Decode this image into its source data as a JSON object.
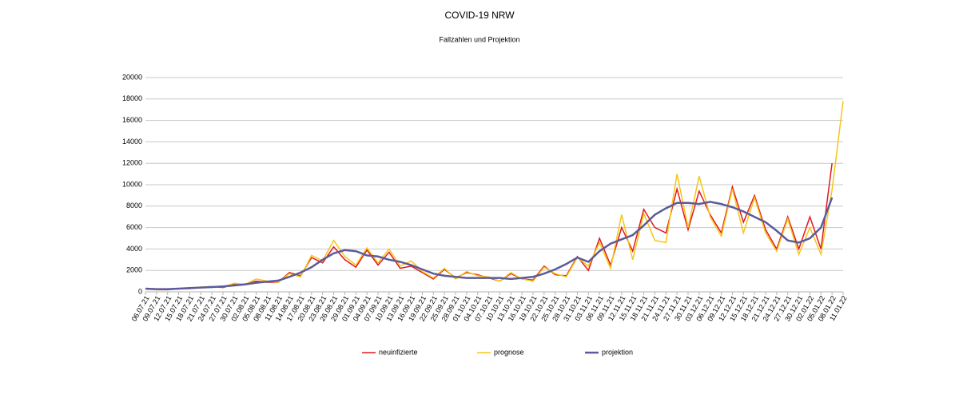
{
  "chart_data": {
    "type": "line",
    "title": "COVID-19 NRW",
    "subtitle": "Fallzahlen und Projektion",
    "categories": [
      "06.07.21",
      "09.07.21",
      "12.07.21",
      "15.07.21",
      "18.07.21",
      "21.07.21",
      "24.07.21",
      "27.07.21",
      "30.07.21",
      "02.08.21",
      "05.08.21",
      "08.08.21",
      "11.08.21",
      "14.08.21",
      "17.08.21",
      "20.08.21",
      "23.08.21",
      "26.08.21",
      "29.08.21",
      "01.09.21",
      "04.09.21",
      "07.09.21",
      "10.09.21",
      "13.09.21",
      "16.09.21",
      "19.09.21",
      "22.09.21",
      "25.09.21",
      "28.09.21",
      "01.10.21",
      "04.10.21",
      "07.10.21",
      "10.10.21",
      "13.10.21",
      "16.10.21",
      "19.10.21",
      "22.10.21",
      "25.10.21",
      "28.10.21",
      "31.10.21",
      "03.11.21",
      "06.11.21",
      "09.11.21",
      "12.11.21",
      "15.11.21",
      "18.11.21",
      "21.11.21",
      "24.11.21",
      "27.11.21",
      "30.11.21",
      "03.12.21",
      "06.12.21",
      "09.12.21",
      "12.12.21",
      "15.12.21",
      "18.12.21",
      "21.12.21",
      "24.12.21",
      "27.12.21",
      "30.12.21",
      "02.01.22",
      "05.01.22",
      "08.01.22",
      "11.01.22"
    ],
    "series": [
      {
        "name": "neuinfizierte",
        "color": "#e31a1c",
        "values": [
          300,
          200,
          200,
          300,
          300,
          400,
          500,
          400,
          700,
          700,
          1000,
          900,
          900,
          1800,
          1500,
          3200,
          2700,
          4200,
          3000,
          2300,
          3900,
          2500,
          3700,
          2200,
          2400,
          1800,
          1200,
          2100,
          1300,
          1800,
          1600,
          1300,
          1000,
          1700,
          1200,
          1100,
          2400,
          1600,
          1500,
          3300,
          2000,
          5000,
          2500,
          6000,
          3800,
          7700,
          6000,
          5500,
          9600,
          5800,
          9400,
          7200,
          5500,
          9800,
          6500,
          9000,
          5800,
          4000,
          7000,
          4000,
          7000,
          4000,
          12000,
          null
        ]
      },
      {
        "name": "prognose",
        "color": "#f5c518",
        "values": [
          250,
          200,
          250,
          300,
          300,
          450,
          500,
          450,
          800,
          700,
          1200,
          1000,
          900,
          1700,
          1400,
          3400,
          2900,
          4800,
          3300,
          2500,
          4100,
          2700,
          4000,
          2400,
          2900,
          1900,
          1300,
          2200,
          1200,
          1900,
          1500,
          1400,
          1000,
          1800,
          1200,
          1000,
          2300,
          1700,
          1400,
          3200,
          2400,
          4600,
          2200,
          7200,
          3000,
          7300,
          4800,
          4600,
          11000,
          6000,
          10800,
          7000,
          5200,
          9600,
          5500,
          8800,
          5500,
          3800,
          6800,
          3500,
          6000,
          3500,
          9500,
          17800
        ]
      },
      {
        "name": "projektion",
        "color": "#5b5b9b",
        "values": [
          300,
          250,
          250,
          300,
          350,
          400,
          450,
          500,
          600,
          700,
          850,
          950,
          1050,
          1400,
          1800,
          2300,
          3000,
          3600,
          3900,
          3800,
          3400,
          3300,
          3000,
          2800,
          2500,
          2100,
          1700,
          1500,
          1400,
          1300,
          1300,
          1300,
          1300,
          1200,
          1300,
          1400,
          1700,
          2100,
          2600,
          3200,
          2800,
          3800,
          4500,
          4900,
          5300,
          6200,
          7200,
          7800,
          8300,
          8300,
          8200,
          8400,
          8200,
          7900,
          7500,
          7000,
          6500,
          5700,
          4800,
          4600,
          5000,
          6000,
          8800,
          null
        ]
      }
    ],
    "ylim": [
      0,
      20000
    ],
    "yticks": [
      0,
      2000,
      4000,
      6000,
      8000,
      10000,
      12000,
      14000,
      16000,
      18000,
      20000
    ],
    "grid": true
  }
}
